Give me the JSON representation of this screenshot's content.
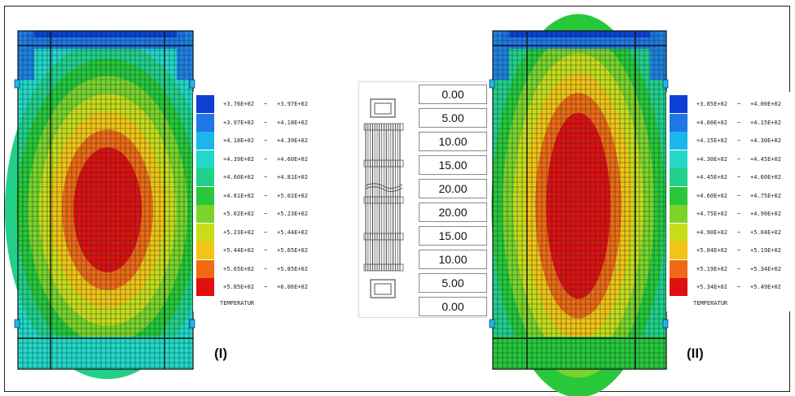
{
  "panels": [
    {
      "label": "(I)",
      "legend_title": "TEMPERATUR",
      "legend": [
        {
          "lo": "+3.76E+02",
          "hi": "+3.97E+02",
          "color": "#0d3fd4"
        },
        {
          "lo": "+3.97E+02",
          "hi": "+4.18E+02",
          "color": "#1f78e6"
        },
        {
          "lo": "+4.18E+02",
          "hi": "+4.39E+02",
          "color": "#1cb7ea"
        },
        {
          "lo": "+4.39E+02",
          "hi": "+4.60E+02",
          "color": "#24d8c8"
        },
        {
          "lo": "+4.60E+02",
          "hi": "+4.81E+02",
          "color": "#22d08a"
        },
        {
          "lo": "+4.81E+02",
          "hi": "+5.02E+02",
          "color": "#28c83a"
        },
        {
          "lo": "+5.02E+02",
          "hi": "+5.23E+02",
          "color": "#7cd42a"
        },
        {
          "lo": "+5.23E+02",
          "hi": "+5.44E+02",
          "color": "#c8dc1a"
        },
        {
          "lo": "+5.44E+02",
          "hi": "+5.65E+02",
          "color": "#f2c414"
        },
        {
          "lo": "+5.65E+02",
          "hi": "+5.85E+02",
          "color": "#f06a14"
        },
        {
          "lo": "+5.85E+02",
          "hi": "+6.06E+02",
          "color": "#e01010"
        }
      ]
    },
    {
      "label": "(II)",
      "legend_title": "TEMPERATUR",
      "legend": [
        {
          "lo": "+3.85E+02",
          "hi": "+4.00E+02",
          "color": "#0d3fd4"
        },
        {
          "lo": "+4.00E+02",
          "hi": "+4.15E+02",
          "color": "#1f78e6"
        },
        {
          "lo": "+4.15E+02",
          "hi": "+4.30E+02",
          "color": "#1cb7ea"
        },
        {
          "lo": "+4.30E+02",
          "hi": "+4.45E+02",
          "color": "#24d8c8"
        },
        {
          "lo": "+4.45E+02",
          "hi": "+4.60E+02",
          "color": "#22d08a"
        },
        {
          "lo": "+4.60E+02",
          "hi": "+4.75E+02",
          "color": "#28c83a"
        },
        {
          "lo": "+4.75E+02",
          "hi": "+4.90E+02",
          "color": "#7cd42a"
        },
        {
          "lo": "+4.90E+02",
          "hi": "+5.04E+02",
          "color": "#c8dc1a"
        },
        {
          "lo": "+5.04E+02",
          "hi": "+5.19E+02",
          "color": "#f2c414"
        },
        {
          "lo": "+5.19E+02",
          "hi": "+5.34E+02",
          "color": "#f06a14"
        },
        {
          "lo": "+5.34E+02",
          "hi": "+5.49E+02",
          "color": "#e01010"
        }
      ]
    }
  ],
  "power_values": [
    "0.00",
    "5.00",
    "10.00",
    "15.00",
    "20.00",
    "20.00",
    "15.00",
    "10.00",
    "5.00",
    "0.00"
  ],
  "separator": "~"
}
